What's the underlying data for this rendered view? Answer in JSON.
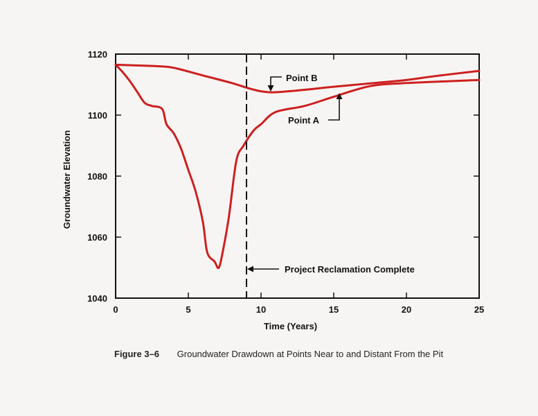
{
  "chart_data": {
    "type": "line",
    "xlabel": "Time (Years)",
    "ylabel": "Groundwater Elevation",
    "xlim": [
      0,
      25
    ],
    "ylim": [
      1040,
      1120
    ],
    "xticks": [
      0,
      5,
      10,
      15,
      20,
      25
    ],
    "yticks": [
      1040,
      1060,
      1080,
      1100,
      1120
    ],
    "grid": false,
    "series": [
      {
        "name": "Point A",
        "x": [
          0,
          0.5,
          1,
          1.5,
          2,
          2.5,
          3.2,
          3.5,
          4,
          4.5,
          5,
          5.5,
          6,
          6.3,
          6.8,
          7.1,
          7.4,
          7.8,
          8.3,
          8.8,
          9.5,
          10,
          11,
          13,
          15,
          17.5,
          20,
          25
        ],
        "y": [
          1116.5,
          1114,
          1111,
          1107.5,
          1104,
          1103,
          1102,
          1097,
          1094,
          1089,
          1082,
          1075,
          1065,
          1055,
          1052,
          1050,
          1056,
          1067,
          1085,
          1090,
          1095,
          1097,
          1101,
          1103,
          1106,
          1109.5,
          1110.5,
          1111.5
        ]
      },
      {
        "name": "Point B",
        "x": [
          0,
          2,
          3,
          4,
          6,
          8,
          9,
          10,
          11,
          13,
          15,
          18,
          20,
          22,
          25
        ],
        "y": [
          1116.5,
          1116.2,
          1116,
          1115.5,
          1113,
          1110.5,
          1109,
          1107.8,
          1107.5,
          1108.3,
          1109.3,
          1110.6,
          1111.5,
          1112.8,
          1114.5
        ]
      }
    ],
    "marker_line": {
      "x": 9,
      "label": "Project Reclamation Complete",
      "style": "dashed"
    },
    "annotations": [
      "Point A",
      "Point B",
      "Project Reclamation Complete"
    ]
  },
  "caption": {
    "figure": "Figure 3–6",
    "text": "Groundwater Drawdown at Points Near to and Distant From the Pit"
  },
  "colors": {
    "series": "#cc1f1f",
    "axes": "#111111",
    "background": "#f7f5f3"
  }
}
